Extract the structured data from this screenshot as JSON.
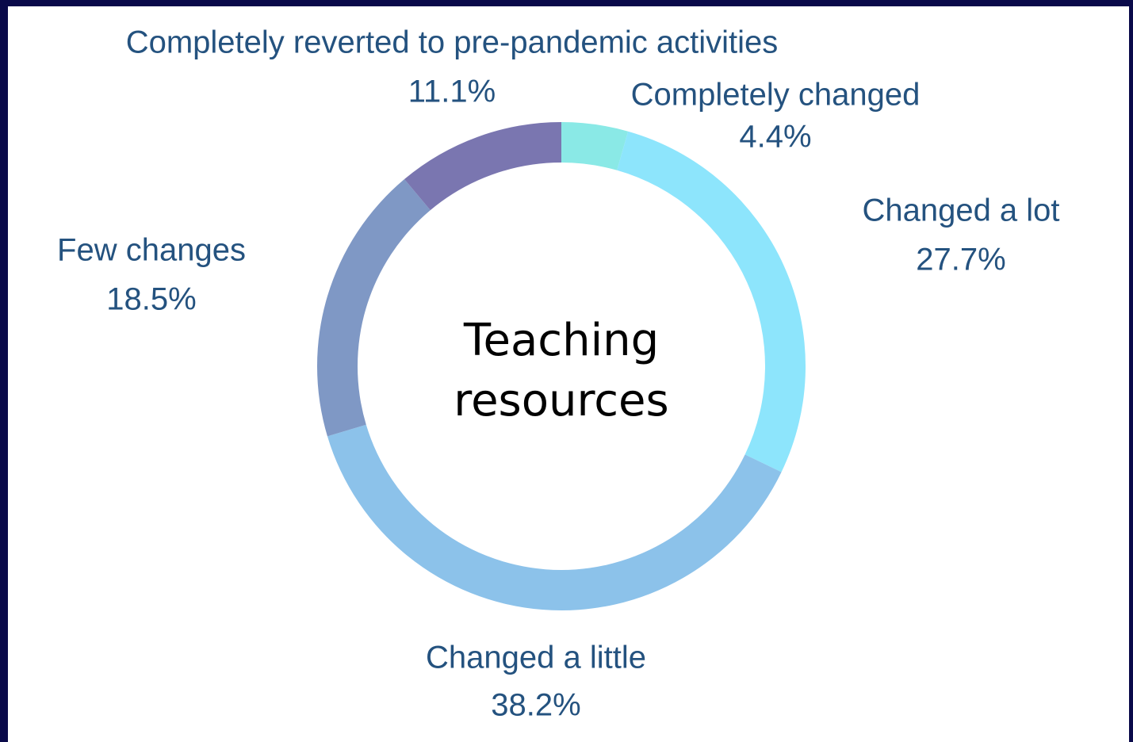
{
  "chart_data": {
    "type": "donut",
    "title": "Teaching resources",
    "categories": [
      "Completely changed",
      "Changed a lot",
      "Changed a little",
      "Few changes",
      "Completely reverted to pre-pandemic activities"
    ],
    "values": [
      4.4,
      27.7,
      38.2,
      18.5,
      11.1
    ],
    "value_labels": [
      "4.4%",
      "27.7%",
      "38.2%",
      "18.5%",
      "11.1%"
    ],
    "colors": [
      "#8ae9e6",
      "#8de5fc",
      "#8cc2ea",
      "#7f98c5",
      "#7a76b0"
    ]
  }
}
